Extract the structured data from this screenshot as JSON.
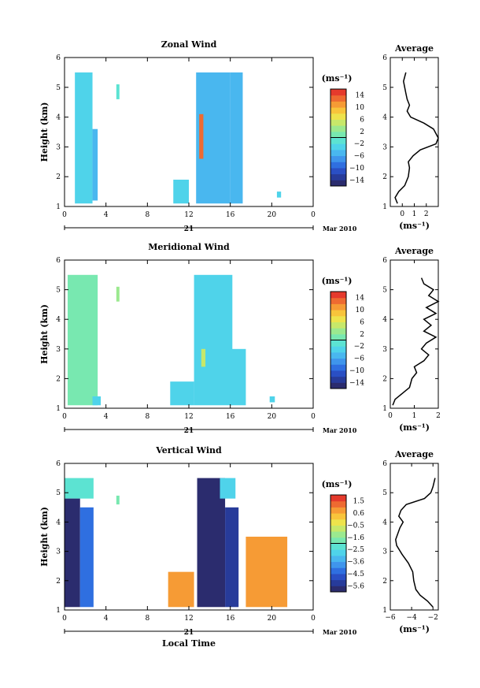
{
  "x_axis": {
    "ticks": [
      "0",
      "4",
      "8",
      "12",
      "16",
      "20",
      "0"
    ],
    "day_label": "21",
    "month_label": "Mar 2010",
    "xlabel": "Local Time"
  },
  "colorbar_unit": "(ms⁻¹)",
  "avg_title": "Average",
  "chart_data": [
    {
      "type": "heatmap",
      "title": "Zonal Wind",
      "ylabel": "Height (km)",
      "xlim": [
        0,
        24
      ],
      "ylim": [
        1,
        6
      ],
      "yticks": [
        "1",
        "2",
        "3",
        "4",
        "5",
        "6"
      ],
      "colorbar": {
        "range": [
          -15,
          15
        ],
        "ticks": [
          "14",
          "10",
          "6",
          "2",
          "−2",
          "−6",
          "−10",
          "−14"
        ],
        "unit": "(ms⁻¹)"
      },
      "data_regions": [
        {
          "t0": 1.0,
          "t1": 2.7,
          "z0": 1.1,
          "z1": 5.5,
          "value": -2.5
        },
        {
          "t0": 2.7,
          "t1": 3.2,
          "z0": 1.2,
          "z1": 3.6,
          "value": -4
        },
        {
          "t0": 5.0,
          "t1": 5.3,
          "z0": 4.6,
          "z1": 5.1,
          "value": -1.5
        },
        {
          "t0": 10.5,
          "t1": 12.0,
          "z0": 1.1,
          "z1": 1.9,
          "value": -3
        },
        {
          "t0": 12.7,
          "t1": 16.0,
          "z0": 1.1,
          "z1": 5.5,
          "value": -4
        },
        {
          "t0": 13.0,
          "t1": 13.4,
          "z0": 2.6,
          "z1": 4.1,
          "value": 13
        },
        {
          "t0": 16.0,
          "t1": 17.2,
          "z0": 1.1,
          "z1": 5.5,
          "value": -5
        },
        {
          "t0": 20.5,
          "t1": 20.9,
          "z0": 1.3,
          "z1": 1.5,
          "value": -3
        }
      ],
      "avg": {
        "title": "Average",
        "xlabel": "(ms⁻¹)",
        "xlim": [
          -1,
          3
        ],
        "xticks": [
          "0",
          "1",
          "2"
        ],
        "yticks": [
          "1",
          "2",
          "3",
          "4",
          "5",
          "6"
        ],
        "z": [
          1.1,
          1.3,
          1.5,
          1.7,
          2.0,
          2.3,
          2.5,
          2.7,
          2.9,
          3.1,
          3.3,
          3.6,
          3.8,
          4.0,
          4.2,
          4.4,
          4.6,
          4.8,
          5.0,
          5.2,
          5.5
        ],
        "u": [
          -0.4,
          -0.6,
          -0.3,
          0.2,
          0.5,
          0.6,
          0.5,
          0.9,
          1.5,
          2.8,
          3.0,
          2.6,
          1.8,
          0.7,
          0.4,
          0.6,
          0.4,
          0.3,
          0.2,
          0.1,
          0.3
        ]
      }
    },
    {
      "type": "heatmap",
      "title": "Meridional Wind",
      "ylabel": "Height (km)",
      "xlim": [
        0,
        24
      ],
      "ylim": [
        1,
        6
      ],
      "yticks": [
        "1",
        "2",
        "3",
        "4",
        "5",
        "6"
      ],
      "colorbar": {
        "range": [
          -15,
          15
        ],
        "ticks": [
          "14",
          "10",
          "6",
          "2",
          "−2",
          "−6",
          "−10",
          "−14"
        ],
        "unit": "(ms⁻¹)"
      },
      "data_regions": [
        {
          "t0": 0.3,
          "t1": 3.2,
          "z0": 1.1,
          "z1": 5.5,
          "value": 1.5
        },
        {
          "t0": 2.7,
          "t1": 3.5,
          "z0": 1.1,
          "z1": 1.4,
          "value": -3
        },
        {
          "t0": 5.0,
          "t1": 5.3,
          "z0": 4.6,
          "z1": 5.1,
          "value": 2
        },
        {
          "t0": 10.2,
          "t1": 12.5,
          "z0": 1.1,
          "z1": 1.9,
          "value": -2
        },
        {
          "t0": 12.5,
          "t1": 16.2,
          "z0": 1.1,
          "z1": 5.5,
          "value": -2.5
        },
        {
          "t0": 13.2,
          "t1": 13.6,
          "z0": 2.4,
          "z1": 3.0,
          "value": 4
        },
        {
          "t0": 16.0,
          "t1": 17.5,
          "z0": 1.1,
          "z1": 3.0,
          "value": -3
        },
        {
          "t0": 19.8,
          "t1": 20.3,
          "z0": 1.2,
          "z1": 1.4,
          "value": -2
        }
      ],
      "avg": {
        "title": "Average",
        "xlabel": "(ms⁻¹)",
        "xlim": [
          0,
          2
        ],
        "xticks": [
          "0",
          "1",
          "2"
        ],
        "yticks": [
          "1",
          "2",
          "3",
          "4",
          "5",
          "6"
        ],
        "z": [
          1.1,
          1.3,
          1.5,
          1.7,
          2.0,
          2.2,
          2.4,
          2.6,
          2.8,
          3.0,
          3.2,
          3.4,
          3.6,
          3.8,
          4.0,
          4.2,
          4.4,
          4.6,
          4.8,
          5.0,
          5.2,
          5.4
        ],
        "u": [
          0.1,
          0.2,
          0.5,
          0.8,
          0.9,
          1.1,
          1.0,
          1.4,
          1.6,
          1.3,
          1.5,
          1.9,
          1.4,
          1.7,
          1.4,
          1.9,
          1.5,
          2.0,
          1.6,
          1.8,
          1.4,
          1.3
        ]
      }
    },
    {
      "type": "heatmap",
      "title": "Vertical Wind",
      "ylabel": "Height (km)",
      "xlabel": "Local Time",
      "xlim": [
        0,
        24
      ],
      "ylim": [
        1,
        6
      ],
      "yticks": [
        "1",
        "2",
        "3",
        "4",
        "5",
        "6"
      ],
      "colorbar": {
        "range": [
          -6,
          2
        ],
        "ticks": [
          "1.5",
          "0.6",
          "−0.5",
          "−1.6",
          "−2.5",
          "−3.6",
          "−4.5",
          "−5.6"
        ],
        "unit": "(ms⁻¹)"
      },
      "data_regions": [
        {
          "t0": 0.0,
          "t1": 2.8,
          "z0": 4.8,
          "z1": 5.5,
          "value": -2.5
        },
        {
          "t0": 0.0,
          "t1": 1.5,
          "z0": 1.1,
          "z1": 4.8,
          "value": -6
        },
        {
          "t0": 1.5,
          "t1": 2.8,
          "z0": 1.1,
          "z1": 4.5,
          "value": -4.5
        },
        {
          "t0": 5.0,
          "t1": 5.3,
          "z0": 4.6,
          "z1": 4.9,
          "value": -2
        },
        {
          "t0": 10.0,
          "t1": 12.5,
          "z0": 1.1,
          "z1": 2.3,
          "value": 0.5
        },
        {
          "t0": 12.8,
          "t1": 15.5,
          "z0": 1.1,
          "z1": 5.5,
          "value": -6
        },
        {
          "t0": 15.0,
          "t1": 16.5,
          "z0": 4.8,
          "z1": 5.5,
          "value": -3
        },
        {
          "t0": 15.5,
          "t1": 16.8,
          "z0": 1.1,
          "z1": 4.5,
          "value": -5.5
        },
        {
          "t0": 17.5,
          "t1": 21.5,
          "z0": 1.1,
          "z1": 3.5,
          "value": 0.8
        }
      ],
      "avg": {
        "title": "Average",
        "xlabel": "(ms⁻¹)",
        "xlim": [
          -6,
          -1.5
        ],
        "xticks": [
          "−6",
          "−4",
          "−2"
        ],
        "yticks": [
          "1",
          "2",
          "3",
          "4",
          "5",
          "6"
        ],
        "z": [
          1.1,
          1.3,
          1.5,
          1.7,
          2.0,
          2.3,
          2.6,
          2.9,
          3.2,
          3.4,
          3.6,
          3.8,
          4.0,
          4.2,
          4.4,
          4.6,
          4.8,
          5.0,
          5.2,
          5.5
        ],
        "u": [
          -2.0,
          -2.5,
          -3.2,
          -3.6,
          -3.8,
          -3.9,
          -4.3,
          -4.9,
          -5.4,
          -5.5,
          -5.3,
          -5.1,
          -4.8,
          -5.2,
          -5.0,
          -4.5,
          -2.8,
          -2.2,
          -2.0,
          -1.8
        ]
      }
    }
  ]
}
